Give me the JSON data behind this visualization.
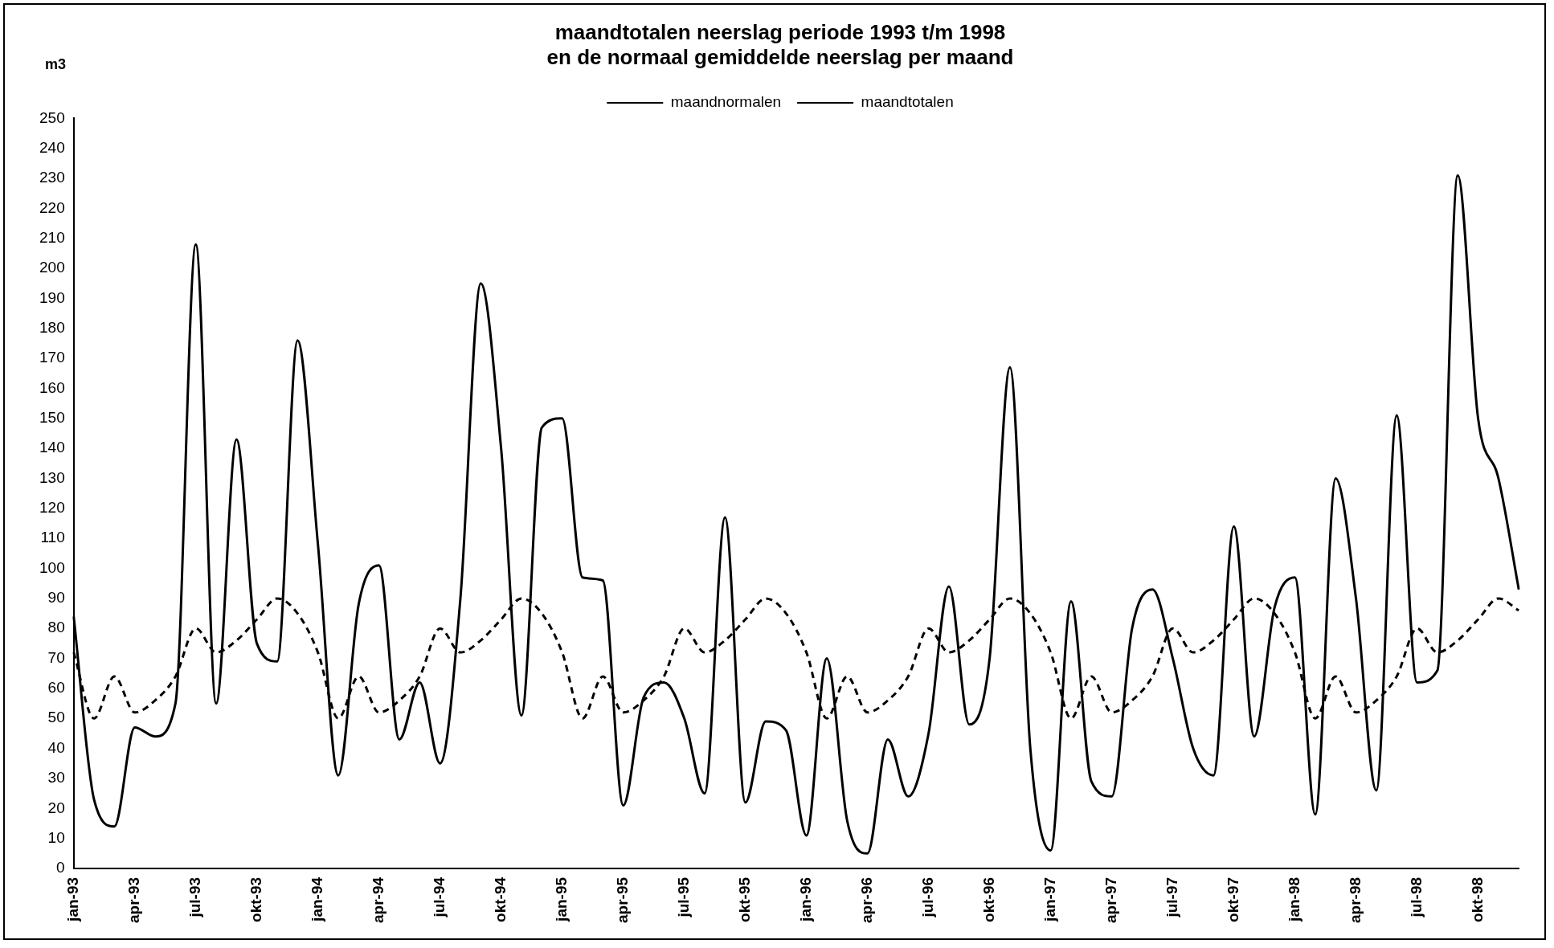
{
  "chart_data": {
    "type": "line",
    "title": [
      "maandtotalen neerslag periode 1993 t/m 1998",
      "en de normaal gemiddelde neerslag per maand"
    ],
    "ylabel": "m3",
    "categories": [
      "jan-93",
      null,
      null,
      "apr-93",
      null,
      null,
      "jul-93",
      null,
      null,
      "okt-93",
      null,
      null,
      "jan-94",
      null,
      null,
      "apr-94",
      null,
      null,
      "jul-94",
      null,
      null,
      "okt-94",
      null,
      null,
      "jan-95",
      null,
      null,
      "apr-95",
      null,
      null,
      "jul-95",
      null,
      null,
      "okt-95",
      null,
      null,
      "jan-96",
      null,
      null,
      "apr-96",
      null,
      null,
      "jul-96",
      null,
      null,
      "okt-96",
      null,
      null,
      "jan-97",
      null,
      null,
      "apr-97",
      null,
      null,
      "jul-97",
      null,
      null,
      "okt-97",
      null,
      null,
      "jan-98",
      null,
      null,
      "apr-98",
      null,
      null,
      "jul-98",
      null,
      null,
      "okt-98",
      null,
      null
    ],
    "series": [
      {
        "name": "maandnormalen",
        "color": "#000000",
        "line_style": "dashed",
        "values": [
          72,
          50,
          64,
          52,
          56,
          64,
          80,
          72,
          76,
          83,
          90,
          85,
          72,
          50,
          64,
          52,
          56,
          64,
          80,
          72,
          76,
          83,
          90,
          85,
          72,
          50,
          64,
          52,
          56,
          64,
          80,
          72,
          76,
          83,
          90,
          85,
          72,
          50,
          64,
          52,
          56,
          64,
          80,
          72,
          76,
          83,
          90,
          85,
          72,
          50,
          64,
          52,
          56,
          64,
          80,
          72,
          76,
          83,
          90,
          85,
          72,
          50,
          64,
          52,
          56,
          64,
          80,
          72,
          76,
          83,
          90,
          86
        ]
      },
      {
        "name": "maandtotalen",
        "color": "#000000",
        "line_style": "solid",
        "values": [
          84,
          23,
          14,
          47,
          44,
          55,
          208,
          55,
          143,
          75,
          69,
          176,
          108,
          31,
          88,
          101,
          43,
          62,
          35,
          90,
          195,
          140,
          51,
          147,
          150,
          97,
          96,
          21,
          57,
          62,
          50,
          25,
          117,
          22,
          49,
          46,
          11,
          70,
          16,
          5,
          43,
          24,
          45,
          94,
          48,
          70,
          167,
          40,
          6,
          89,
          29,
          24,
          80,
          93,
          70,
          40,
          31,
          114,
          44,
          87,
          97,
          18,
          130,
          90,
          26,
          151,
          62,
          66,
          231,
          150,
          130,
          93
        ]
      }
    ],
    "ylim": [
      0,
      250
    ],
    "yticks": [
      0,
      10,
      20,
      30,
      40,
      50,
      60,
      70,
      80,
      90,
      100,
      110,
      120,
      130,
      140,
      150,
      160,
      170,
      180,
      190,
      200,
      210,
      220,
      230,
      240,
      250
    ],
    "grid": false,
    "legend": "top",
    "marker": "none"
  }
}
